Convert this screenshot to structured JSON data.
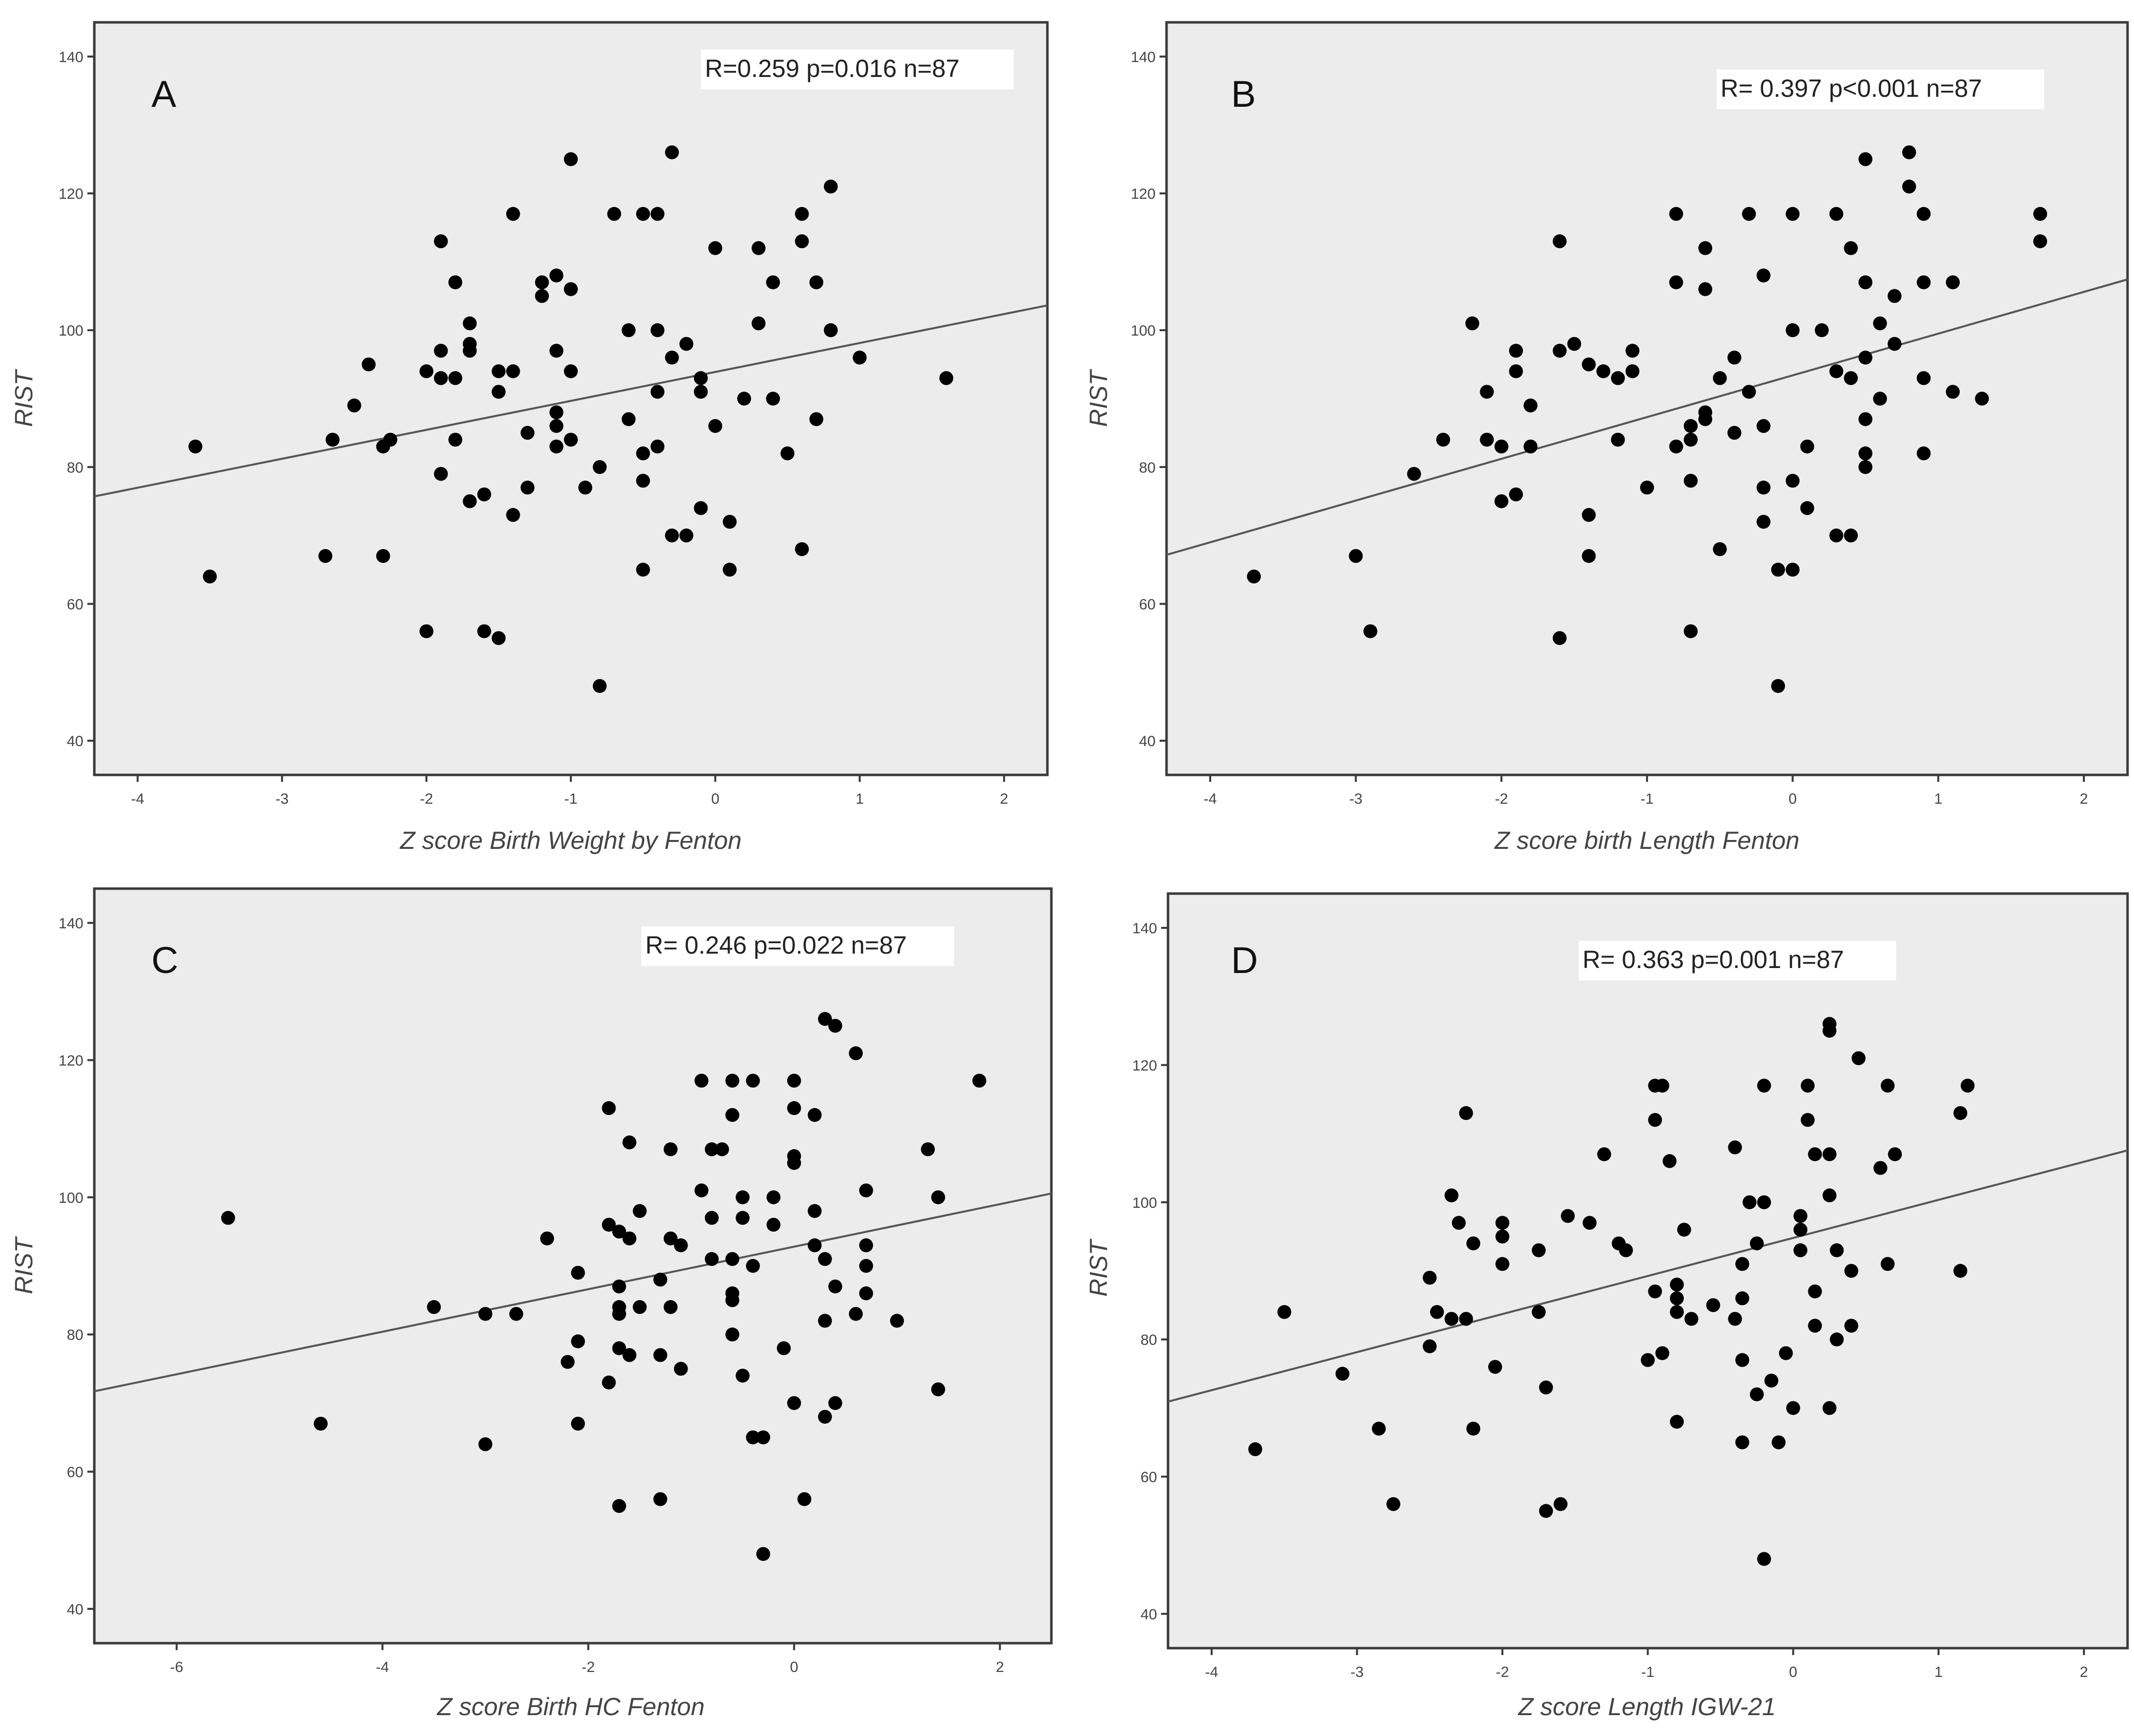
{
  "chart_data": [
    {
      "type": "scatter",
      "panel_label": "A",
      "stats": "R=0.259   p=0.016   n=87",
      "xlabel": "Z score Birth Weight  by Fenton",
      "ylabel": "RIST",
      "xlim": [
        -4.3,
        2.3
      ],
      "ylim": [
        35,
        145
      ],
      "xticks": [
        -4,
        -3,
        -2,
        -1,
        0,
        1,
        2
      ],
      "yticks": [
        40,
        60,
        80,
        100,
        120,
        140
      ],
      "regression": {
        "slope": 4.23,
        "intercept": 93.9
      },
      "points": [
        [
          -3.6,
          83
        ],
        [
          -3.5,
          64
        ],
        [
          -2.7,
          67
        ],
        [
          -2.65,
          84
        ],
        [
          -2.5,
          89
        ],
        [
          -2.4,
          95
        ],
        [
          -2.3,
          83
        ],
        [
          -2.3,
          67
        ],
        [
          -2.25,
          84
        ],
        [
          -2.0,
          94
        ],
        [
          -2.0,
          56
        ],
        [
          -1.9,
          113
        ],
        [
          -1.9,
          97
        ],
        [
          -1.9,
          93
        ],
        [
          -1.9,
          79
        ],
        [
          -1.8,
          107
        ],
        [
          -1.8,
          93
        ],
        [
          -1.8,
          84
        ],
        [
          -1.7,
          101
        ],
        [
          -1.7,
          98
        ],
        [
          -1.7,
          97
        ],
        [
          -1.7,
          75
        ],
        [
          -1.6,
          76
        ],
        [
          -1.6,
          56
        ],
        [
          -1.5,
          94
        ],
        [
          -1.5,
          91
        ],
        [
          -1.5,
          55
        ],
        [
          -1.4,
          117
        ],
        [
          -1.4,
          94
        ],
        [
          -1.4,
          73
        ],
        [
          -1.3,
          85
        ],
        [
          -1.3,
          77
        ],
        [
          -1.2,
          107
        ],
        [
          -1.2,
          105
        ],
        [
          -1.1,
          108
        ],
        [
          -1.1,
          97
        ],
        [
          -1.1,
          88
        ],
        [
          -1.1,
          86
        ],
        [
          -1.1,
          83
        ],
        [
          -1.0,
          125
        ],
        [
          -1.0,
          106
        ],
        [
          -1.0,
          94
        ],
        [
          -1.0,
          84
        ],
        [
          -0.9,
          77
        ],
        [
          -0.8,
          80
        ],
        [
          -0.8,
          48
        ],
        [
          -0.7,
          117
        ],
        [
          -0.6,
          100
        ],
        [
          -0.6,
          87
        ],
        [
          -0.5,
          117
        ],
        [
          -0.5,
          82
        ],
        [
          -0.5,
          78
        ],
        [
          -0.5,
          65
        ],
        [
          -0.4,
          117
        ],
        [
          -0.4,
          100
        ],
        [
          -0.4,
          91
        ],
        [
          -0.4,
          83
        ],
        [
          -0.3,
          126
        ],
        [
          -0.3,
          96
        ],
        [
          -0.3,
          70
        ],
        [
          -0.2,
          98
        ],
        [
          -0.2,
          70
        ],
        [
          -0.1,
          93
        ],
        [
          -0.1,
          91
        ],
        [
          -0.1,
          74
        ],
        [
          0.0,
          112
        ],
        [
          0.0,
          86
        ],
        [
          0.1,
          72
        ],
        [
          0.1,
          65
        ],
        [
          0.2,
          90
        ],
        [
          0.3,
          112
        ],
        [
          0.3,
          101
        ],
        [
          0.4,
          107
        ],
        [
          0.4,
          90
        ],
        [
          0.5,
          82
        ],
        [
          0.6,
          117
        ],
        [
          0.6,
          113
        ],
        [
          0.6,
          68
        ],
        [
          0.7,
          107
        ],
        [
          0.7,
          87
        ],
        [
          0.8,
          121
        ],
        [
          0.8,
          100
        ],
        [
          1.0,
          96
        ],
        [
          1.6,
          93
        ]
      ]
    },
    {
      "type": "scatter",
      "panel_label": "B",
      "stats": "R= 0.397    p<0.001   n=87",
      "xlabel": "Z score birth Length Fenton",
      "ylabel": "RIST",
      "xlim": [
        -4.3,
        2.3
      ],
      "ylim": [
        35,
        145
      ],
      "xticks": [
        -4,
        -3,
        -2,
        -1,
        0,
        1,
        2
      ],
      "yticks": [
        40,
        60,
        80,
        100,
        120,
        140
      ],
      "regression": {
        "slope": 6.1,
        "intercept": 93.4
      },
      "points": [
        [
          -3.7,
          64
        ],
        [
          -3.0,
          67
        ],
        [
          -2.9,
          56
        ],
        [
          -2.6,
          79
        ],
        [
          -2.4,
          84
        ],
        [
          -2.2,
          101
        ],
        [
          -2.1,
          91
        ],
        [
          -2.1,
          84
        ],
        [
          -2.0,
          83
        ],
        [
          -2.0,
          75
        ],
        [
          -1.9,
          97
        ],
        [
          -1.9,
          94
        ],
        [
          -1.9,
          76
        ],
        [
          -1.8,
          89
        ],
        [
          -1.8,
          83
        ],
        [
          -1.6,
          113
        ],
        [
          -1.6,
          97
        ],
        [
          -1.6,
          55
        ],
        [
          -1.5,
          98
        ],
        [
          -1.4,
          95
        ],
        [
          -1.4,
          73
        ],
        [
          -1.4,
          67
        ],
        [
          -1.3,
          94
        ],
        [
          -1.2,
          93
        ],
        [
          -1.2,
          84
        ],
        [
          -1.1,
          97
        ],
        [
          -1.1,
          94
        ],
        [
          -1.0,
          77
        ],
        [
          -0.8,
          117
        ],
        [
          -0.8,
          107
        ],
        [
          -0.8,
          83
        ],
        [
          -0.7,
          86
        ],
        [
          -0.7,
          84
        ],
        [
          -0.7,
          78
        ],
        [
          -0.7,
          56
        ],
        [
          -0.6,
          112
        ],
        [
          -0.6,
          106
        ],
        [
          -0.6,
          88
        ],
        [
          -0.6,
          87
        ],
        [
          -0.5,
          93
        ],
        [
          -0.5,
          68
        ],
        [
          -0.4,
          96
        ],
        [
          -0.4,
          85
        ],
        [
          -0.3,
          117
        ],
        [
          -0.3,
          91
        ],
        [
          -0.2,
          108
        ],
        [
          -0.2,
          86
        ],
        [
          -0.2,
          77
        ],
        [
          -0.2,
          72
        ],
        [
          -0.1,
          65
        ],
        [
          -0.1,
          48
        ],
        [
          0.0,
          117
        ],
        [
          0.0,
          100
        ],
        [
          0.0,
          78
        ],
        [
          0.0,
          65
        ],
        [
          0.1,
          83
        ],
        [
          0.1,
          74
        ],
        [
          0.2,
          100
        ],
        [
          0.3,
          117
        ],
        [
          0.3,
          94
        ],
        [
          0.3,
          70
        ],
        [
          0.4,
          112
        ],
        [
          0.4,
          93
        ],
        [
          0.4,
          70
        ],
        [
          0.5,
          125
        ],
        [
          0.5,
          107
        ],
        [
          0.5,
          96
        ],
        [
          0.5,
          87
        ],
        [
          0.5,
          82
        ],
        [
          0.5,
          80
        ],
        [
          0.6,
          101
        ],
        [
          0.6,
          90
        ],
        [
          0.7,
          105
        ],
        [
          0.7,
          98
        ],
        [
          0.8,
          126
        ],
        [
          0.8,
          121
        ],
        [
          0.9,
          117
        ],
        [
          0.9,
          107
        ],
        [
          0.9,
          93
        ],
        [
          0.9,
          82
        ],
        [
          1.1,
          107
        ],
        [
          1.1,
          91
        ],
        [
          1.3,
          90
        ],
        [
          1.7,
          117
        ],
        [
          1.7,
          113
        ]
      ]
    },
    {
      "type": "scatter",
      "panel_label": "C",
      "stats": "R= 0.246   p=0.022   n=87",
      "xlabel": "Z score Birth HC Fenton",
      "ylabel": "RIST",
      "xlim": [
        -6.8,
        2.5
      ],
      "ylim": [
        35,
        145
      ],
      "xticks": [
        -6,
        -4,
        -2,
        0,
        2
      ],
      "yticks": [
        40,
        60,
        80,
        100,
        120,
        140
      ],
      "regression": {
        "slope": 3.1,
        "intercept": 92.8
      },
      "points": [
        [
          -5.5,
          97
        ],
        [
          -4.6,
          67
        ],
        [
          -3.5,
          84
        ],
        [
          -3.0,
          83
        ],
        [
          -3.0,
          64
        ],
        [
          -2.7,
          83
        ],
        [
          -2.4,
          94
        ],
        [
          -2.2,
          76
        ],
        [
          -2.1,
          89
        ],
        [
          -2.1,
          79
        ],
        [
          -2.1,
          67
        ],
        [
          -1.8,
          113
        ],
        [
          -1.8,
          96
        ],
        [
          -1.8,
          73
        ],
        [
          -1.7,
          95
        ],
        [
          -1.7,
          87
        ],
        [
          -1.7,
          84
        ],
        [
          -1.7,
          83
        ],
        [
          -1.7,
          78
        ],
        [
          -1.7,
          55
        ],
        [
          -1.6,
          108
        ],
        [
          -1.6,
          94
        ],
        [
          -1.6,
          77
        ],
        [
          -1.5,
          98
        ],
        [
          -1.5,
          84
        ],
        [
          -1.3,
          88
        ],
        [
          -1.3,
          77
        ],
        [
          -1.3,
          56
        ],
        [
          -1.2,
          107
        ],
        [
          -1.2,
          94
        ],
        [
          -1.2,
          84
        ],
        [
          -1.1,
          93
        ],
        [
          -1.1,
          75
        ],
        [
          -0.9,
          117
        ],
        [
          -0.9,
          101
        ],
        [
          -0.8,
          107
        ],
        [
          -0.8,
          97
        ],
        [
          -0.8,
          91
        ],
        [
          -0.7,
          107
        ],
        [
          -0.6,
          117
        ],
        [
          -0.6,
          112
        ],
        [
          -0.6,
          91
        ],
        [
          -0.6,
          86
        ],
        [
          -0.6,
          85
        ],
        [
          -0.6,
          80
        ],
        [
          -0.5,
          100
        ],
        [
          -0.5,
          97
        ],
        [
          -0.5,
          74
        ],
        [
          -0.4,
          117
        ],
        [
          -0.4,
          90
        ],
        [
          -0.4,
          65
        ],
        [
          -0.3,
          65
        ],
        [
          -0.3,
          48
        ],
        [
          -0.2,
          100
        ],
        [
          -0.2,
          96
        ],
        [
          -0.1,
          78
        ],
        [
          0.0,
          117
        ],
        [
          0.0,
          113
        ],
        [
          0.0,
          106
        ],
        [
          0.0,
          105
        ],
        [
          0.0,
          70
        ],
        [
          0.1,
          56
        ],
        [
          0.2,
          112
        ],
        [
          0.2,
          98
        ],
        [
          0.2,
          93
        ],
        [
          0.3,
          126
        ],
        [
          0.3,
          91
        ],
        [
          0.3,
          82
        ],
        [
          0.3,
          68
        ],
        [
          0.4,
          125
        ],
        [
          0.4,
          87
        ],
        [
          0.4,
          70
        ],
        [
          0.6,
          121
        ],
        [
          0.6,
          83
        ],
        [
          0.7,
          101
        ],
        [
          0.7,
          93
        ],
        [
          0.7,
          90
        ],
        [
          0.7,
          86
        ],
        [
          1.0,
          82
        ],
        [
          1.3,
          107
        ],
        [
          1.4,
          100
        ],
        [
          1.4,
          72
        ],
        [
          1.8,
          117
        ]
      ]
    },
    {
      "type": "scatter",
      "panel_label": "D",
      "stats": "R= 0.363   p=0.001    n=87",
      "xlabel": "Z score Length IGW-21",
      "ylabel": "RIST",
      "xlim": [
        -4.3,
        2.3
      ],
      "ylim": [
        35,
        145
      ],
      "xticks": [
        -4,
        -3,
        -2,
        -1,
        0,
        1,
        2
      ],
      "yticks": [
        40,
        60,
        80,
        100,
        120,
        140
      ],
      "regression": {
        "slope": 5.55,
        "intercept": 94.8
      },
      "points": [
        [
          -3.7,
          64
        ],
        [
          -3.5,
          84
        ],
        [
          -3.1,
          75
        ],
        [
          -2.85,
          67
        ],
        [
          -2.75,
          56
        ],
        [
          -2.5,
          89
        ],
        [
          -2.5,
          79
        ],
        [
          -2.45,
          84
        ],
        [
          -2.35,
          101
        ],
        [
          -2.35,
          83
        ],
        [
          -2.3,
          97
        ],
        [
          -2.25,
          113
        ],
        [
          -2.25,
          83
        ],
        [
          -2.2,
          94
        ],
        [
          -2.2,
          67
        ],
        [
          -2.05,
          76
        ],
        [
          -2.0,
          97
        ],
        [
          -2.0,
          95
        ],
        [
          -2.0,
          91
        ],
        [
          -1.75,
          93
        ],
        [
          -1.75,
          84
        ],
        [
          -1.7,
          73
        ],
        [
          -1.7,
          55
        ],
        [
          -1.6,
          56
        ],
        [
          -1.55,
          98
        ],
        [
          -1.4,
          97
        ],
        [
          -1.3,
          107
        ],
        [
          -1.2,
          94
        ],
        [
          -1.15,
          93
        ],
        [
          -1.0,
          77
        ],
        [
          -0.95,
          117
        ],
        [
          -0.95,
          112
        ],
        [
          -0.95,
          87
        ],
        [
          -0.9,
          117
        ],
        [
          -0.9,
          78
        ],
        [
          -0.85,
          106
        ],
        [
          -0.8,
          88
        ],
        [
          -0.8,
          86
        ],
        [
          -0.8,
          84
        ],
        [
          -0.8,
          68
        ],
        [
          -0.75,
          96
        ],
        [
          -0.7,
          83
        ],
        [
          -0.55,
          85
        ],
        [
          -0.4,
          108
        ],
        [
          -0.4,
          83
        ],
        [
          -0.35,
          91
        ],
        [
          -0.35,
          86
        ],
        [
          -0.35,
          77
        ],
        [
          -0.35,
          65
        ],
        [
          -0.3,
          100
        ],
        [
          -0.25,
          94
        ],
        [
          -0.25,
          72
        ],
        [
          -0.2,
          117
        ],
        [
          -0.2,
          100
        ],
        [
          -0.2,
          48
        ],
        [
          -0.15,
          74
        ],
        [
          -0.1,
          65
        ],
        [
          -0.05,
          78
        ],
        [
          0.0,
          70
        ],
        [
          0.05,
          98
        ],
        [
          0.05,
          96
        ],
        [
          0.05,
          93
        ],
        [
          0.1,
          117
        ],
        [
          0.1,
          112
        ],
        [
          0.15,
          107
        ],
        [
          0.15,
          87
        ],
        [
          0.15,
          82
        ],
        [
          0.25,
          126
        ],
        [
          0.25,
          125
        ],
        [
          0.25,
          107
        ],
        [
          0.25,
          101
        ],
        [
          0.25,
          70
        ],
        [
          0.3,
          93
        ],
        [
          0.3,
          80
        ],
        [
          0.45,
          121
        ],
        [
          0.4,
          90
        ],
        [
          0.4,
          82
        ],
        [
          0.6,
          105
        ],
        [
          0.65,
          117
        ],
        [
          0.65,
          91
        ],
        [
          0.7,
          107
        ],
        [
          1.15,
          113
        ],
        [
          1.15,
          90
        ],
        [
          1.2,
          117
        ]
      ]
    }
  ]
}
